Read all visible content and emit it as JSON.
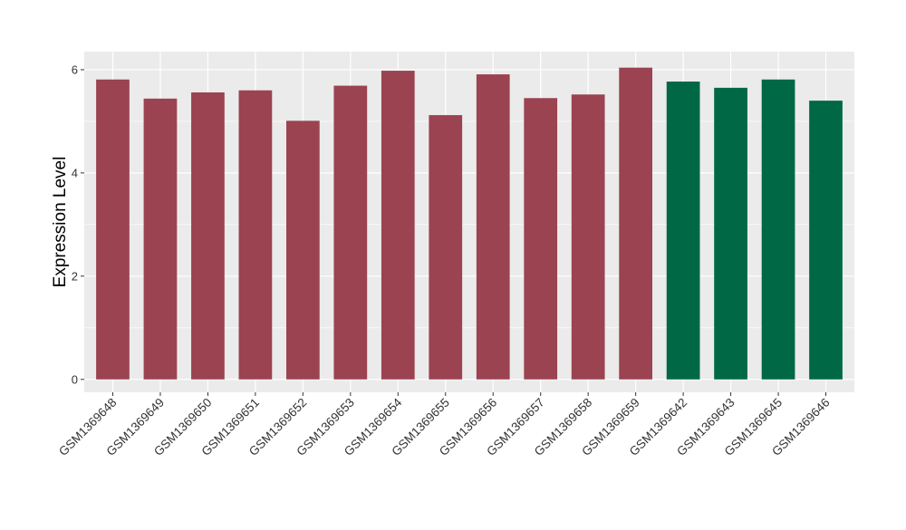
{
  "chart_data": {
    "type": "bar",
    "title": "",
    "xlabel": "",
    "ylabel": "Expression Level",
    "ylim": [
      -0.25,
      6.35
    ],
    "yticks": [
      0,
      2,
      4,
      6
    ],
    "grid": true,
    "legend": "none",
    "categories": [
      "GSM1369648",
      "GSM1369649",
      "GSM1369650",
      "GSM1369651",
      "GSM1369652",
      "GSM1369653",
      "GSM1369654",
      "GSM1369655",
      "GSM1369656",
      "GSM1369657",
      "GSM1369658",
      "GSM1369659",
      "GSM1369642",
      "GSM1369643",
      "GSM1369645",
      "GSM1369646"
    ],
    "values": [
      5.81,
      5.44,
      5.56,
      5.6,
      5.01,
      5.69,
      5.98,
      5.12,
      5.91,
      5.45,
      5.52,
      6.04,
      5.77,
      5.65,
      5.81,
      5.4
    ],
    "bar_colors": [
      "#9B4350",
      "#9B4350",
      "#9B4350",
      "#9B4350",
      "#9B4350",
      "#9B4350",
      "#9B4350",
      "#9B4350",
      "#9B4350",
      "#9B4350",
      "#9B4350",
      "#9B4350",
      "#006845",
      "#006845",
      "#006845",
      "#006845"
    ],
    "panel_background": "#EBEBEB",
    "grid_color": "#FFFFFF"
  }
}
